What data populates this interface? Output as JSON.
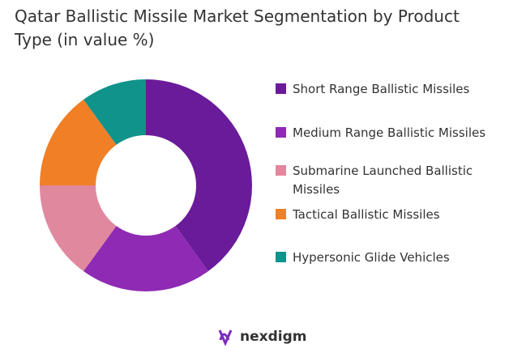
{
  "chart_data": {
    "type": "donut",
    "title": "Qatar Ballistic Missile Market Segmentation by Product Type (in value %)",
    "categories": [
      "Short Range Ballistic Missiles",
      "Medium Range Ballistic Missiles",
      "Submarine Launched Ballistic Missiles",
      "Tactical Ballistic Missiles",
      "Hypersonic Glide Vehicles"
    ],
    "values": [
      40,
      20,
      15,
      15,
      10
    ],
    "colors": [
      "#6a1b9a",
      "#8e2ab3",
      "#e0889e",
      "#f07f26",
      "#0f938a"
    ],
    "legend": "right"
  },
  "brand": "nexdigm"
}
